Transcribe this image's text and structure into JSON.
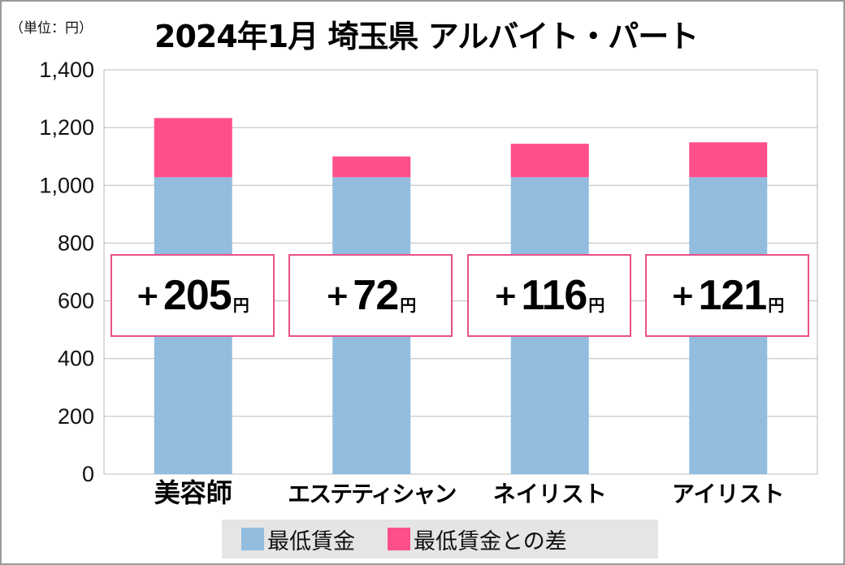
{
  "chart_data": {
    "type": "bar",
    "stacked": true,
    "title": "2024年1月 埼玉県 アルバイト・パート",
    "unit_label": "（単位：円）",
    "categories": [
      "美容師",
      "エステティシャン",
      "ネイリスト",
      "アイリスト"
    ],
    "series": [
      {
        "name": "最低賃金",
        "values": [
          1028,
          1028,
          1028,
          1028
        ],
        "color": "#92bddf"
      },
      {
        "name": "最低賃金との差",
        "values": [
          205,
          72,
          116,
          121
        ],
        "color": "#ff4f8b"
      }
    ],
    "data_labels": [
      {
        "prefix": "+",
        "value": "205",
        "suffix": "円"
      },
      {
        "prefix": "+",
        "value": "72",
        "suffix": "円"
      },
      {
        "prefix": "+",
        "value": "116",
        "suffix": "円"
      },
      {
        "prefix": "+",
        "value": "121",
        "suffix": "円"
      }
    ],
    "yticks": [
      "0",
      "200",
      "400",
      "600",
      "800",
      "1,000",
      "1,200",
      "1,400"
    ],
    "ylim": [
      0,
      1400
    ],
    "grid": true,
    "legend_position": "bottom"
  }
}
